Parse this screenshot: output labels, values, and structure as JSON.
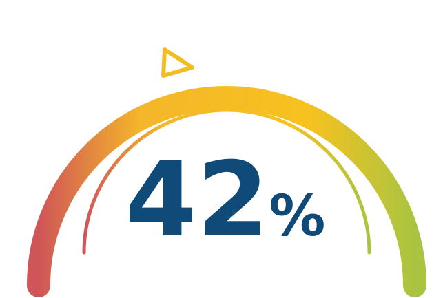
{
  "gauge": {
    "value": 42,
    "display_number": "42",
    "display_unit": "%",
    "text_color": "#0f4a78",
    "gradient_colors": [
      "#cf5558",
      "#f4b62a",
      "#f7c21f",
      "#a9c441"
    ]
  }
}
